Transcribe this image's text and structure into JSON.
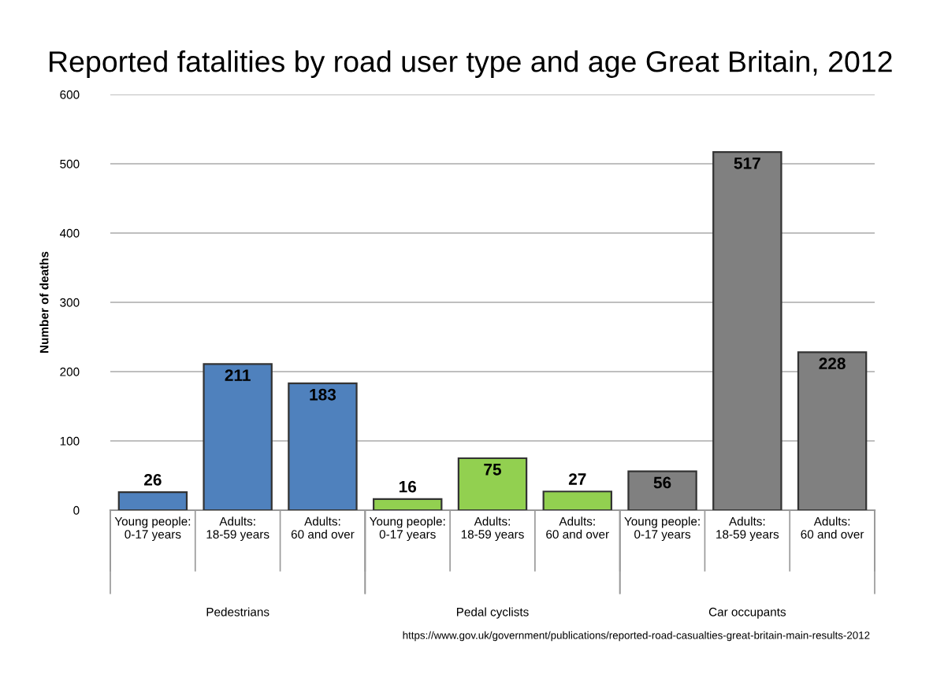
{
  "chart_data": {
    "type": "bar",
    "title": "Reported fatalities by road user type and age Great Britain, 2012",
    "ylabel": "Number of deaths",
    "categories": [
      "Young people:\n0-17 years",
      "Adults:\n18-59 years",
      "Adults:\n60 and over",
      "Young people:\n0-17 years",
      "Adults:\n18-59 years",
      "Adults:\n60 and over",
      "Young people:\n0-17 years",
      "Adults:\n18-59 years",
      "Adults:\n60 and over"
    ],
    "values": [
      26,
      211,
      183,
      16,
      75,
      27,
      56,
      517,
      228
    ],
    "colors": [
      "#4f81bd",
      "#4f81bd",
      "#4f81bd",
      "#92d050",
      "#92d050",
      "#92d050",
      "#808080",
      "#808080",
      "#808080"
    ],
    "data_labels": true,
    "ylim": [
      0,
      600
    ],
    "yticks": [
      0,
      100,
      200,
      300,
      400,
      500,
      600
    ],
    "grid": "y",
    "annotations": [
      "Pedestrians",
      "Pedal cyclists",
      "Car occupants",
      "https://www.gov.uk/government/publications/reported-road-casualties-great-britain-main-results-2012"
    ]
  }
}
